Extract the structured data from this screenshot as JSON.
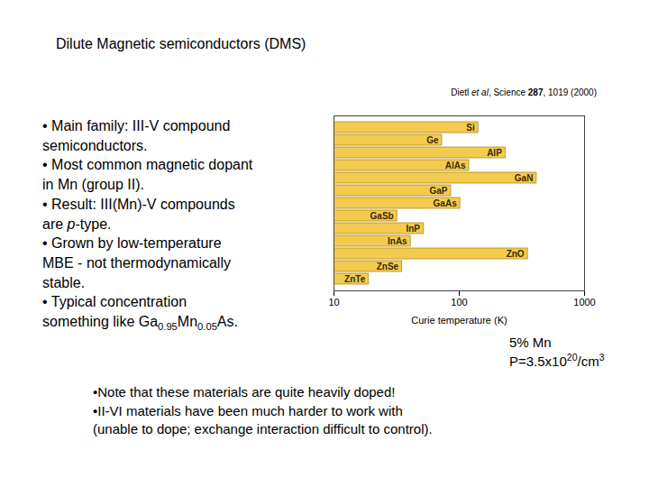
{
  "slide": {
    "title": "Dilute Magnetic semiconductors (DMS)",
    "citation": [
      {
        "text": "Dietl "
      },
      {
        "text": "et al",
        "style": "italic"
      },
      {
        "text": ", Science "
      },
      {
        "text": "287",
        "style": "bold"
      },
      {
        "text": ", 1019 (2000)"
      }
    ],
    "bullet_lines": [
      [
        {
          "text": "• Main family: III-V compound"
        }
      ],
      [
        {
          "text": "semiconductors."
        }
      ],
      [
        {
          "text": "• Most common magnetic dopant"
        }
      ],
      [
        {
          "text": "in Mn (group II)."
        }
      ],
      [
        {
          "text": "• Result: III(Mn)-V compounds"
        }
      ],
      [
        {
          "text": "are "
        },
        {
          "text": "p",
          "style": "italic"
        },
        {
          "text": "-type."
        }
      ],
      [
        {
          "text": "• Grown by low-temperature"
        }
      ],
      [
        {
          "text": "MBE - not thermodynamically"
        }
      ],
      [
        {
          "text": "stable."
        }
      ],
      [
        {
          "text": "• Typical concentration"
        }
      ],
      [
        {
          "text": "something like Ga"
        },
        {
          "text": "0.95",
          "style": "sub"
        },
        {
          "text": "Mn"
        },
        {
          "text": "0.05",
          "style": "sub"
        },
        {
          "text": "As."
        }
      ]
    ],
    "note_lines": [
      [
        {
          "text": "5% Mn"
        }
      ],
      [
        {
          "text": "P=3.5x10"
        },
        {
          "text": "20",
          "style": "sup"
        },
        {
          "text": "/cm"
        },
        {
          "text": "3",
          "style": "sup"
        }
      ]
    ],
    "bottom_lines": [
      [
        {
          "text": "•Note that these materials are quite heavily doped!"
        }
      ],
      [
        {
          "text": "•II-VI materials have been much harder to work with"
        }
      ],
      [
        {
          "text": "(unable to dope; exchange interaction difficult to control)."
        }
      ]
    ]
  },
  "chart_data": {
    "type": "bar",
    "orientation": "horizontal",
    "categories": [
      "Si",
      "Ge",
      "AlP",
      "AlAs",
      "GaN",
      "GaP",
      "GaAs",
      "GaSb",
      "InP",
      "InAs",
      "ZnO",
      "ZnSe",
      "ZnTe"
    ],
    "values": [
      142,
      73,
      234,
      120,
      415,
      86,
      102,
      32,
      52,
      41,
      353,
      35,
      19
    ],
    "color": "#f3cb4f",
    "xlabel": "Curie temperature (K)",
    "xlim": [
      10,
      1000
    ],
    "xticks": [
      10,
      100,
      1000
    ],
    "log": "x",
    "grid": false,
    "tick_labels": "x"
  }
}
